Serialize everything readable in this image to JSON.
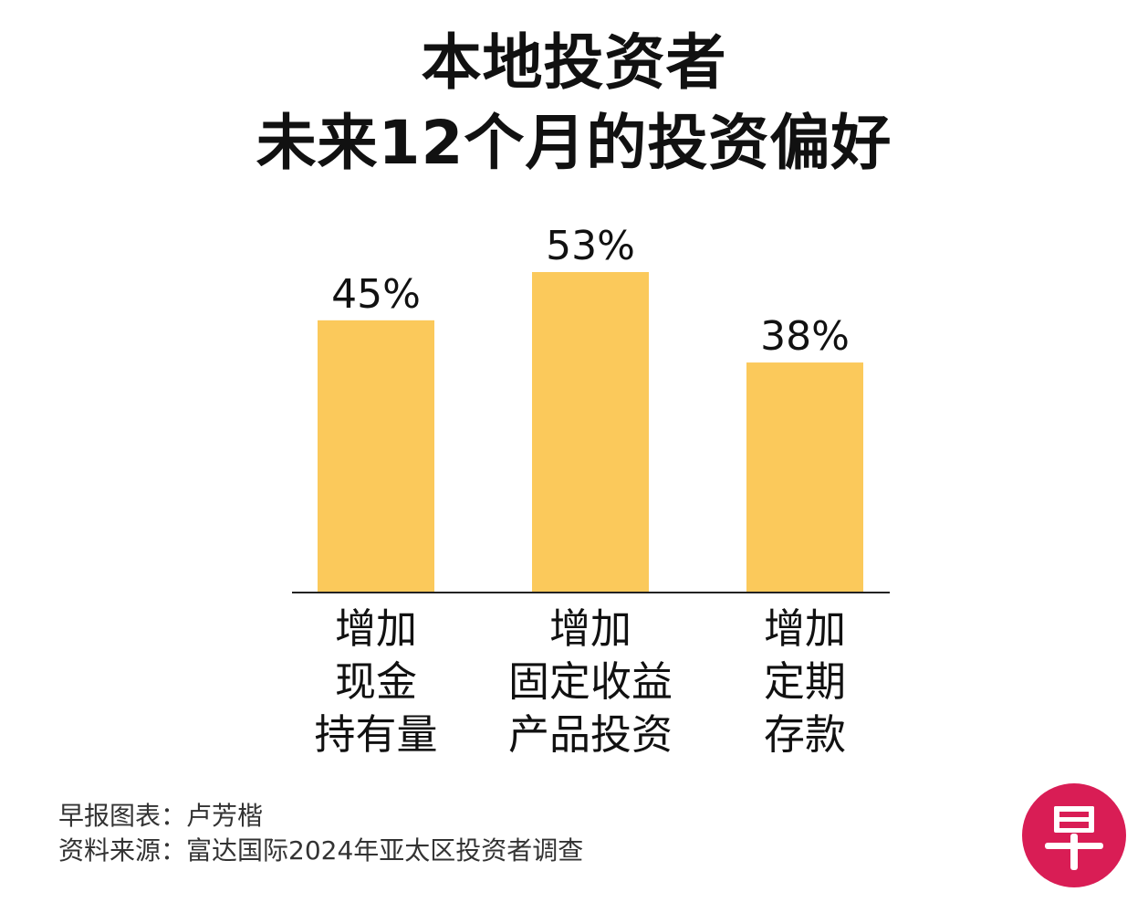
{
  "title": {
    "line1": "本地投资者",
    "line2": "未来12个月的投资偏好"
  },
  "chart_data": {
    "type": "bar",
    "categories": [
      [
        "增加",
        "现金",
        "持有量"
      ],
      [
        "增加",
        "固定收益",
        "产品投资"
      ],
      [
        "增加",
        "定期",
        "存款"
      ]
    ],
    "values": [
      45,
      53,
      38
    ],
    "value_labels": [
      "45%",
      "53%",
      "38%"
    ],
    "unit": "%",
    "ylim": [
      0,
      53
    ],
    "grid": false,
    "legend": "none",
    "bar_color": "#fbc95b"
  },
  "footer": {
    "credit": "早报图表：卢芳楷",
    "source": "资料来源：富达国际2024年亚太区投资者调查"
  },
  "logo": {
    "text": "早",
    "color": "#d91d55"
  }
}
